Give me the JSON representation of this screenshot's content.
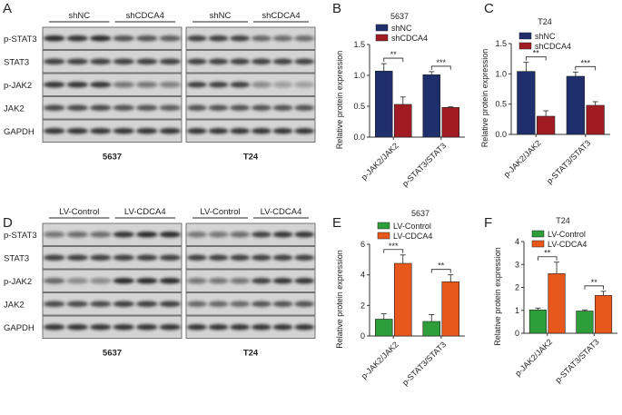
{
  "panel_letters": [
    "A",
    "B",
    "C",
    "D",
    "E",
    "F"
  ],
  "blots": [
    {
      "panel": "A",
      "cell_line": "5637",
      "groups": [
        "shNC",
        "shCDCA4"
      ],
      "rows": [
        "p-STAT3",
        "STAT3",
        "p-JAK2",
        "JAK2",
        "GAPDH"
      ]
    },
    {
      "panel": "A",
      "cell_line": "T24",
      "groups": [
        "shNC",
        "shCDCA4"
      ],
      "rows": [
        "p-STAT3",
        "STAT3",
        "p-JAK2",
        "JAK2",
        "GAPDH"
      ]
    },
    {
      "panel": "D",
      "cell_line": "5637",
      "groups": [
        "LV-Control",
        "LV-CDCA4"
      ],
      "rows": [
        "p-STAT3",
        "STAT3",
        "p-JAK2",
        "JAK2",
        "GAPDH"
      ]
    },
    {
      "panel": "D",
      "cell_line": "T24",
      "groups": [
        "LV-Control",
        "LV-CDCA4"
      ],
      "rows": [
        "p-STAT3",
        "STAT3",
        "p-JAK2",
        "JAK2",
        "GAPDH"
      ]
    }
  ],
  "chart_data": [
    {
      "panel": "B",
      "type": "bar",
      "title": "5637",
      "ylabel": "Relative protein expression",
      "ylim": [
        0,
        1.5
      ],
      "yticks": [
        "0.0",
        "0.5",
        "1.0",
        "1.5"
      ],
      "categories": [
        "p-JAK2/JAK2",
        "p-STAT3/STAT3"
      ],
      "series": [
        {
          "name": "shNC",
          "color": "#1f2f6e",
          "values": [
            1.07,
            1.01
          ],
          "errors": [
            0.12,
            0.05
          ]
        },
        {
          "name": "shCDCA4",
          "color": "#a11c22",
          "values": [
            0.53,
            0.48
          ],
          "errors": [
            0.12,
            0.01
          ]
        }
      ],
      "significance": [
        "**",
        "***"
      ],
      "legend": "top-left"
    },
    {
      "panel": "C",
      "type": "bar",
      "title": "T24",
      "ylabel": "Relative protein expression",
      "ylim": [
        0,
        1.5
      ],
      "yticks": [
        "0.0",
        "0.5",
        "1.0",
        "1.5"
      ],
      "categories": [
        "p-JAK2/JAK2",
        "p-STAT3/STAT3"
      ],
      "series": [
        {
          "name": "shNC",
          "color": "#1f2f6e",
          "values": [
            1.04,
            0.96
          ],
          "errors": [
            0.15,
            0.07
          ]
        },
        {
          "name": "shCDCA4",
          "color": "#a11c22",
          "values": [
            0.3,
            0.48
          ],
          "errors": [
            0.09,
            0.06
          ]
        }
      ],
      "significance": [
        "**",
        "***"
      ],
      "legend": "top-left"
    },
    {
      "panel": "E",
      "type": "bar",
      "title": "5637",
      "ylabel": "Relative protein expression",
      "ylim": [
        0,
        6
      ],
      "yticks": [
        "0",
        "2",
        "4",
        "6"
      ],
      "categories": [
        "p-JAK2/JAK2",
        "p-STAT3/STAT3"
      ],
      "series": [
        {
          "name": "LV-Control",
          "color": "#2e9e3a",
          "values": [
            1.1,
            0.95
          ],
          "errors": [
            0.35,
            0.45
          ]
        },
        {
          "name": "LV-CDCA4",
          "color": "#e8571c",
          "values": [
            4.75,
            3.55
          ],
          "errors": [
            0.55,
            0.45
          ]
        }
      ],
      "significance": [
        "***",
        "**"
      ],
      "legend": "top-left"
    },
    {
      "panel": "F",
      "type": "bar",
      "title": "T24",
      "ylabel": "Relative protein expression",
      "ylim": [
        0,
        4
      ],
      "yticks": [
        "0",
        "1",
        "2",
        "3",
        "4"
      ],
      "categories": [
        "p-JAK2/JAK2",
        "p-STAT3/STAT3"
      ],
      "series": [
        {
          "name": "LV-Control",
          "color": "#2e9e3a",
          "values": [
            1.02,
            0.97
          ],
          "errors": [
            0.08,
            0.05
          ]
        },
        {
          "name": "LV-CDCA4",
          "color": "#e8571c",
          "values": [
            2.6,
            1.65
          ],
          "errors": [
            0.5,
            0.18
          ]
        }
      ],
      "significance": [
        "**",
        "**"
      ],
      "legend": "top-left"
    }
  ]
}
